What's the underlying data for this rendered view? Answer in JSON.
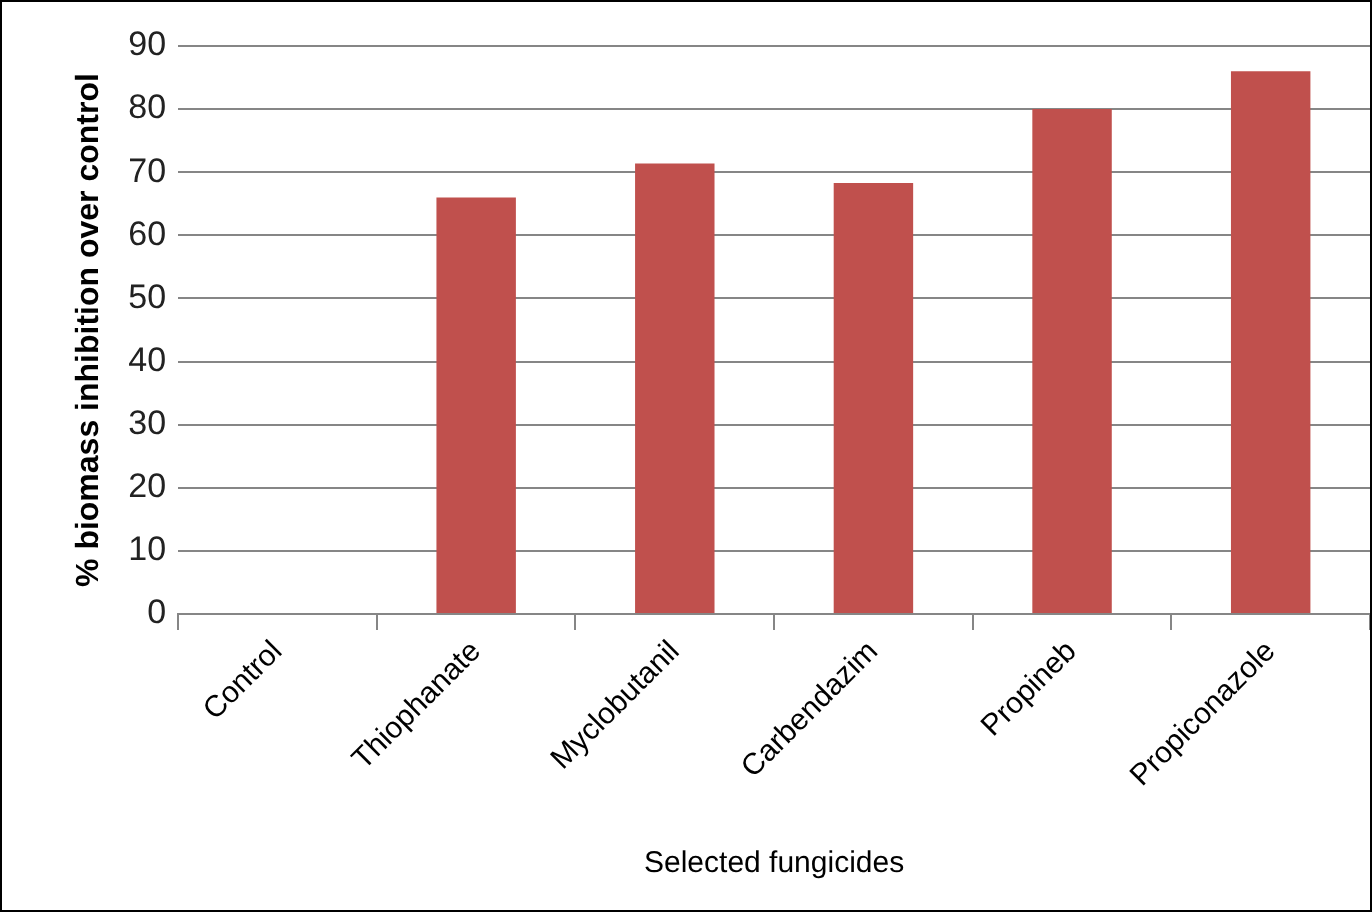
{
  "chart_data": {
    "type": "bar",
    "xlabel": "Selected fungicides",
    "ylabel": "% biomass inhibition over control",
    "categories": [
      "Control",
      "Thiophanate",
      "Myclobutanil",
      "Carbendazim",
      "Propineb",
      "Propiconazole"
    ],
    "values": [
      0,
      66,
      71.4,
      68.3,
      80,
      86
    ],
    "color": "#c0504d",
    "ylim": [
      0,
      90
    ],
    "yticks": [
      0,
      10,
      20,
      30,
      40,
      50,
      60,
      70,
      80,
      90
    ],
    "grid": "y",
    "legend": false
  }
}
